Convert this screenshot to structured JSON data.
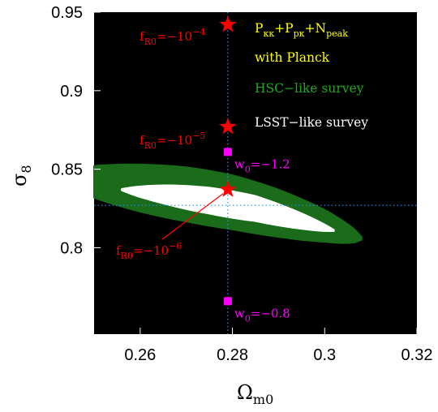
{
  "chart_data": {
    "type": "scatter",
    "xlabel_main": "Ω",
    "xlabel_sub": "m0",
    "ylabel_main": "σ",
    "ylabel_sub": "8",
    "xlim": [
      0.25,
      0.32
    ],
    "ylim": [
      0.745,
      0.95
    ],
    "x_ticks": [
      {
        "value": 0.26,
        "label": "0.26"
      },
      {
        "value": 0.28,
        "label": "0.28"
      },
      {
        "value": 0.3,
        "label": "0.3"
      },
      {
        "value": 0.32,
        "label": "0.32"
      }
    ],
    "y_ticks": [
      {
        "value": 0.8,
        "label": "0.8"
      },
      {
        "value": 0.85,
        "label": "0.85"
      },
      {
        "value": 0.9,
        "label": "0.9"
      },
      {
        "value": 0.95,
        "label": "0.95"
      }
    ],
    "fiducial": {
      "omega_m0": 0.279,
      "sigma8": 0.827
    },
    "contours": [
      {
        "name": "HSC-like survey",
        "color": "#1a6b1a",
        "band": [
          [
            0.25,
            0.842
          ],
          [
            0.26,
            0.838
          ],
          [
            0.27,
            0.834
          ],
          [
            0.28,
            0.829
          ],
          [
            0.29,
            0.822
          ],
          [
            0.3,
            0.814
          ],
          [
            0.308,
            0.806
          ]
        ],
        "half_width": 0.0175
      },
      {
        "name": "LSST-like survey",
        "color": "#ffffff",
        "band": [
          [
            0.256,
            0.837
          ],
          [
            0.265,
            0.834
          ],
          [
            0.275,
            0.83
          ],
          [
            0.285,
            0.825
          ],
          [
            0.295,
            0.817
          ],
          [
            0.302,
            0.811
          ]
        ],
        "half_width": 0.0085
      }
    ],
    "stars": [
      {
        "x": 0.279,
        "y": 0.942,
        "label_main": "f",
        "label_sub": "R0",
        "label_tail": "=−10",
        "label_sup": "−4"
      },
      {
        "x": 0.279,
        "y": 0.877,
        "label_main": "f",
        "label_sub": "R0",
        "label_tail": "=−10",
        "label_sup": "−5"
      },
      {
        "x": 0.279,
        "y": 0.837,
        "label_main": "f",
        "label_sub": "R0",
        "label_tail": "=−10",
        "label_sup": "−6"
      }
    ],
    "squares": [
      {
        "x": 0.279,
        "y": 0.861,
        "label_main": "w",
        "label_sub": "0",
        "label_tail": "=−1.2"
      },
      {
        "x": 0.279,
        "y": 0.766,
        "label_main": "w",
        "label_sub": "0",
        "label_tail": "=−0.8"
      }
    ],
    "legend": {
      "line1_parts": [
        {
          "t": "P",
          "k": "n"
        },
        {
          "t": "κκ",
          "k": "sub"
        },
        {
          "t": "+P",
          "k": "n"
        },
        {
          "t": "pκ",
          "k": "sub"
        },
        {
          "t": "+N",
          "k": "n"
        },
        {
          "t": "peak",
          "k": "sub"
        }
      ],
      "line2": "with Planck",
      "line3": "HSC−like survey",
      "line4": "LSST−like survey",
      "color_yellow": "#ffff00",
      "color_green": "#1fa81f",
      "color_white": "#ffffff"
    },
    "colors": {
      "background": "#000000",
      "star": "#ff0000",
      "square": "#ff00ff",
      "guide": "#1e90ff",
      "arrow": "#ff0000"
    }
  }
}
